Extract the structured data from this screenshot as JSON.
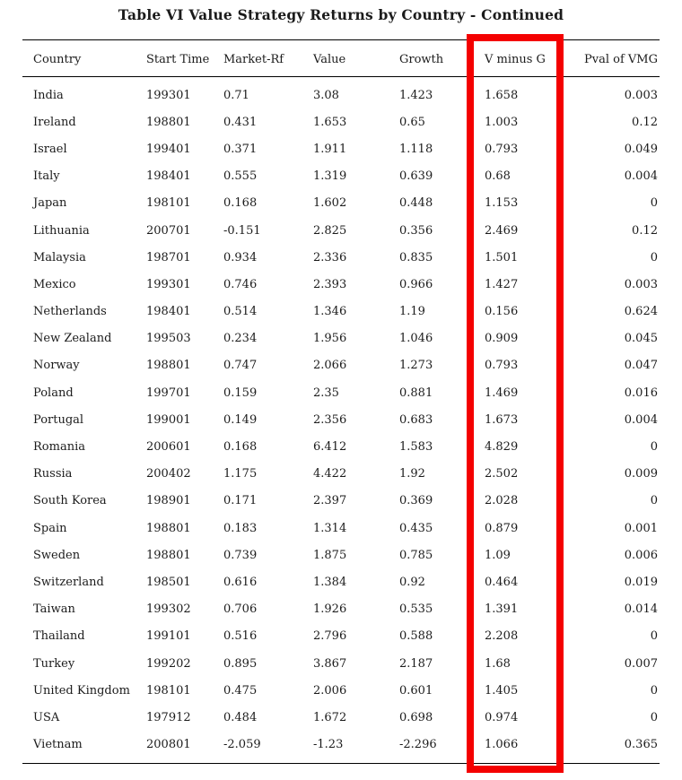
{
  "title": "Table VI Value Strategy Returns by Country - Continued",
  "table": {
    "columns": [
      "Country",
      "Start Time",
      "Market-Rf",
      "Value",
      "Growth",
      "V minus G",
      "Pval of VMG"
    ],
    "rows": [
      [
        "India",
        "199301",
        "0.71",
        "3.08",
        "1.423",
        "1.658",
        "0.003"
      ],
      [
        "Ireland",
        "198801",
        "0.431",
        "1.653",
        "0.65",
        "1.003",
        "0.12"
      ],
      [
        "Israel",
        "199401",
        "0.371",
        "1.911",
        "1.118",
        "0.793",
        "0.049"
      ],
      [
        "Italy",
        "198401",
        "0.555",
        "1.319",
        "0.639",
        "0.68",
        "0.004"
      ],
      [
        "Japan",
        "198101",
        "0.168",
        "1.602",
        "0.448",
        "1.153",
        "0"
      ],
      [
        "Lithuania",
        "200701",
        "-0.151",
        "2.825",
        "0.356",
        "2.469",
        "0.12"
      ],
      [
        "Malaysia",
        "198701",
        "0.934",
        "2.336",
        "0.835",
        "1.501",
        "0"
      ],
      [
        "Mexico",
        "199301",
        "0.746",
        "2.393",
        "0.966",
        "1.427",
        "0.003"
      ],
      [
        "Netherlands",
        "198401",
        "0.514",
        "1.346",
        "1.19",
        "0.156",
        "0.624"
      ],
      [
        "New Zealand",
        "199503",
        "0.234",
        "1.956",
        "1.046",
        "0.909",
        "0.045"
      ],
      [
        "Norway",
        "198801",
        "0.747",
        "2.066",
        "1.273",
        "0.793",
        "0.047"
      ],
      [
        "Poland",
        "199701",
        "0.159",
        "2.35",
        "0.881",
        "1.469",
        "0.016"
      ],
      [
        "Portugal",
        "199001",
        "0.149",
        "2.356",
        "0.683",
        "1.673",
        "0.004"
      ],
      [
        "Romania",
        "200601",
        "0.168",
        "6.412",
        "1.583",
        "4.829",
        "0"
      ],
      [
        "Russia",
        "200402",
        "1.175",
        "4.422",
        "1.92",
        "2.502",
        "0.009"
      ],
      [
        "South Korea",
        "198901",
        "0.171",
        "2.397",
        "0.369",
        "2.028",
        "0"
      ],
      [
        "Spain",
        "198801",
        "0.183",
        "1.314",
        "0.435",
        "0.879",
        "0.001"
      ],
      [
        "Sweden",
        "198801",
        "0.739",
        "1.875",
        "0.785",
        "1.09",
        "0.006"
      ],
      [
        "Switzerland",
        "198501",
        "0.616",
        "1.384",
        "0.92",
        "0.464",
        "0.019"
      ],
      [
        "Taiwan",
        "199302",
        "0.706",
        "1.926",
        "0.535",
        "1.391",
        "0.014"
      ],
      [
        "Thailand",
        "199101",
        "0.516",
        "2.796",
        "0.588",
        "2.208",
        "0"
      ],
      [
        "Turkey",
        "199202",
        "0.895",
        "3.867",
        "2.187",
        "1.68",
        "0.007"
      ],
      [
        "United Kingdom",
        "198101",
        "0.475",
        "2.006",
        "0.601",
        "1.405",
        "0"
      ],
      [
        "USA",
        "197912",
        "0.484",
        "1.672",
        "0.698",
        "0.974",
        "0"
      ],
      [
        "Vietnam",
        "200801",
        "-2.059",
        "-1.23",
        "-2.296",
        "1.066",
        "0.365"
      ]
    ]
  },
  "highlight": {
    "highlighted_column": "V minus G",
    "color": "#f40000"
  }
}
